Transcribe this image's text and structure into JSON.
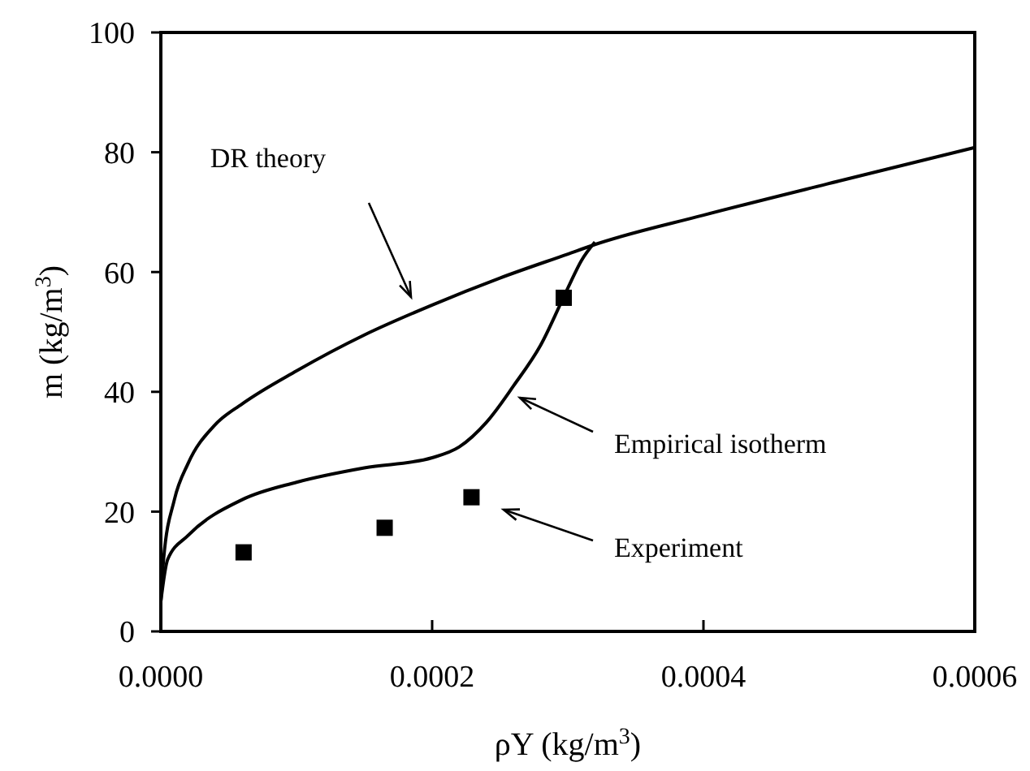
{
  "chart_data": {
    "type": "line",
    "xlabel": "ρY (kg/m$^{3}$)",
    "ylabel": "m (kg/m$^{3}$)",
    "xlim": [
      0,
      0.0006
    ],
    "ylim": [
      0,
      100
    ],
    "xticks": [
      {
        "value": 0,
        "label": "0.0000"
      },
      {
        "value": 0.0002,
        "label": "0.0002"
      },
      {
        "value": 0.0004,
        "label": "0.0004"
      },
      {
        "value": 0.0006,
        "label": "0.0006"
      }
    ],
    "yticks": [
      0,
      20,
      40,
      60,
      80,
      100
    ],
    "grid": false,
    "series": [
      {
        "type": "line",
        "color": "#000000",
        "marker": "none",
        "x": [
          0,
          2e-06,
          1e-05,
          2e-05,
          4e-05,
          6e-05,
          0.0001,
          0.00015,
          0.0002,
          0.00025,
          0.0003,
          0.00032,
          0.0004,
          0.0005,
          0.0006
        ],
        "values": [
          5,
          12,
          22,
          28,
          34.5,
          38,
          43.5,
          49.5,
          54.5,
          59,
          63,
          64.6,
          69.5,
          75.2,
          80.8
        ]
      },
      {
        "type": "line",
        "color": "#000000",
        "marker": "none",
        "x": [
          0,
          5e-06,
          2e-05,
          6e-05,
          0.0001,
          0.00015,
          0.0002,
          0.00022,
          0.00024,
          0.00026,
          0.00028,
          0.0003,
          0.00031,
          0.00032
        ],
        "values": [
          5,
          12,
          16,
          22,
          24.9,
          27.3,
          29,
          30.8,
          34.9,
          41,
          47.8,
          57.3,
          61.9,
          65
        ]
      },
      {
        "type": "scatter",
        "color": "#000000",
        "marker": "square",
        "x": [
          6.1e-05,
          0.000165,
          0.000229,
          0.000297
        ],
        "values": [
          13.2,
          17.3,
          22.4,
          55.7
        ]
      }
    ],
    "annotations": [
      "DR theory",
      "Empirical isotherm",
      "Experiment"
    ]
  }
}
